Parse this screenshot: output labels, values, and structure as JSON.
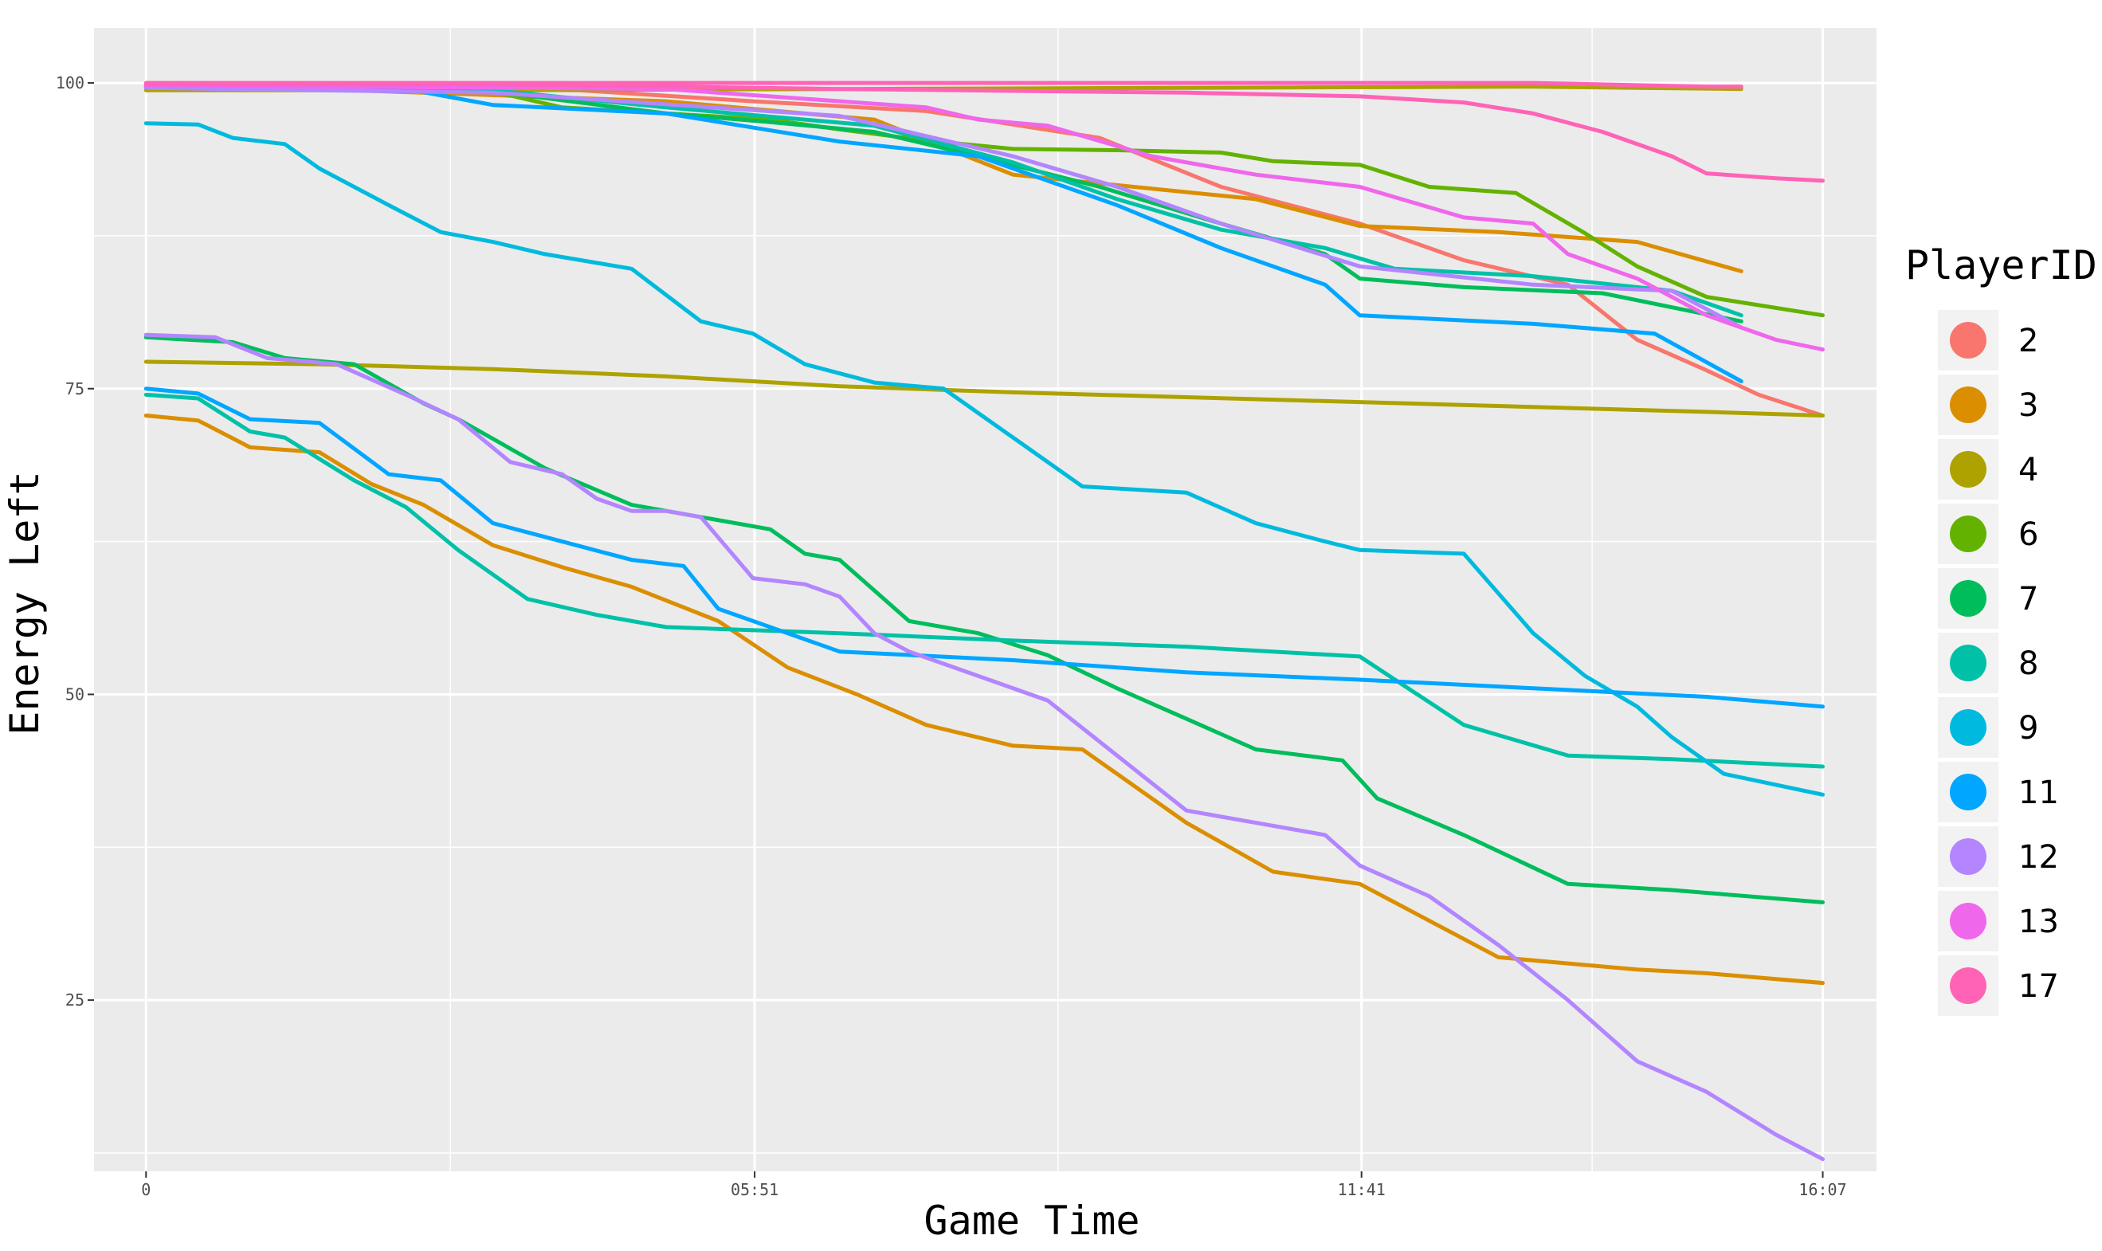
{
  "chart_data": {
    "type": "line",
    "xlabel": "Game Time",
    "ylabel": "Energy Left",
    "x_unit": "seconds",
    "xlim": [
      -30,
      998
    ],
    "ylim": [
      11,
      104.5
    ],
    "x_ticks": [
      {
        "value": 0,
        "label": "0"
      },
      {
        "value": 351,
        "label": "05:51"
      },
      {
        "value": 701,
        "label": "11:41"
      },
      {
        "value": 967,
        "label": "16:07"
      }
    ],
    "x_minor_ticks": [
      175.5,
      526,
      834
    ],
    "y_ticks": [
      {
        "value": 25,
        "label": "25"
      },
      {
        "value": 50,
        "label": "50"
      },
      {
        "value": 75,
        "label": "75"
      },
      {
        "value": 100,
        "label": "100"
      }
    ],
    "y_minor_ticks": [
      12.5,
      37.5,
      62.5,
      87.5
    ],
    "grid": true,
    "background": "#ebebeb",
    "legend": {
      "title": "PlayerID",
      "position": "right"
    },
    "series": [
      {
        "name": "2",
        "color": "#F8766D",
        "x": [
          0,
          100,
          250,
          350,
          450,
          550,
          620,
          700,
          760,
          820,
          860,
          900,
          930,
          967
        ],
        "y": [
          99.8,
          99.6,
          99.4,
          98.5,
          97.7,
          95.5,
          91.5,
          88.5,
          85.5,
          83.5,
          79,
          76.5,
          74.5,
          72.8
        ]
      },
      {
        "name": "3",
        "color": "#DB8E00",
        "x": [
          0,
          40,
          120,
          300,
          420,
          500,
          640,
          700,
          780,
          860,
          920
        ],
        "y": [
          99.6,
          99.5,
          99.4,
          98.5,
          97.0,
          92.5,
          90.5,
          88.3,
          87.8,
          87.0,
          84.6
        ]
      },
      {
        "name": "3",
        "color": "#DB8E00",
        "x": [
          0,
          30,
          60,
          100,
          130,
          160,
          200,
          240,
          280,
          330,
          370,
          410,
          450,
          500,
          540,
          600,
          650,
          700,
          740,
          780,
          820,
          860,
          900,
          967
        ],
        "y": [
          72.8,
          72.4,
          70.2,
          69.8,
          67.2,
          65.5,
          62.2,
          60.4,
          58.8,
          56.0,
          52.2,
          50.0,
          47.5,
          45.8,
          45.5,
          39.5,
          35.5,
          34.5,
          31.5,
          28.5,
          28.0,
          27.5,
          27.2,
          26.4
        ]
      },
      {
        "name": "4",
        "color": "#AEA200",
        "x": [
          0,
          100,
          200,
          300,
          400,
          500,
          600,
          700,
          800,
          900,
          967
        ],
        "y": [
          77.2,
          77.0,
          76.6,
          76.0,
          75.2,
          74.7,
          74.3,
          73.9,
          73.5,
          73.1,
          72.8
        ]
      },
      {
        "name": "4",
        "color": "#AEA200",
        "x": [
          0,
          200,
          400,
          600,
          800,
          920
        ],
        "y": [
          99.4,
          99.4,
          99.5,
          99.6,
          99.7,
          99.5
        ]
      },
      {
        "name": "6",
        "color": "#64B200",
        "x": [
          0,
          100,
          200,
          240,
          300,
          360,
          400,
          450,
          500,
          560,
          620,
          650,
          700,
          740,
          790,
          830,
          860,
          900,
          967
        ],
        "y": [
          99.6,
          99.5,
          99.3,
          98.0,
          97.5,
          97.0,
          96.2,
          95.3,
          94.6,
          94.5,
          94.3,
          93.6,
          93.3,
          91.5,
          91.0,
          87.7,
          85.0,
          82.5,
          81.0
        ]
      },
      {
        "name": "7",
        "color": "#00BD5C",
        "x": [
          0,
          50,
          80,
          120,
          160,
          180,
          230,
          280,
          320,
          360,
          380,
          400,
          440,
          480,
          520,
          560,
          600,
          640,
          690,
          710,
          760,
          820,
          880,
          967
        ],
        "y": [
          79.2,
          78.8,
          77.5,
          77.0,
          73.8,
          72.5,
          68.5,
          65.5,
          64.5,
          63.5,
          61.5,
          61.0,
          56.0,
          55.0,
          53.2,
          50.5,
          48.0,
          45.5,
          44.6,
          41.5,
          38.5,
          34.5,
          34.0,
          33.0
        ]
      },
      {
        "name": "7",
        "color": "#00BD5C",
        "x": [
          0,
          200,
          300,
          360,
          420,
          480,
          550,
          620,
          680,
          700,
          760,
          840,
          920
        ],
        "y": [
          99.6,
          99.3,
          97.5,
          96.8,
          96.0,
          94.0,
          91.5,
          88.5,
          86.0,
          84.0,
          83.3,
          82.8,
          80.5
        ]
      },
      {
        "name": "8",
        "color": "#00C1A7",
        "x": [
          0,
          30,
          60,
          80,
          120,
          150,
          180,
          220,
          260,
          300,
          400,
          500,
          600,
          700,
          760,
          820,
          880,
          967
        ],
        "y": [
          74.5,
          74.2,
          71.5,
          71.0,
          67.5,
          65.3,
          61.8,
          57.8,
          56.5,
          55.5,
          55.0,
          54.4,
          53.9,
          53.1,
          47.5,
          45.0,
          44.7,
          44.1
        ]
      },
      {
        "name": "8",
        "color": "#00C1A7",
        "x": [
          0,
          200,
          300,
          420,
          500,
          560,
          620,
          680,
          720,
          800,
          880,
          920
        ],
        "y": [
          99.7,
          99.4,
          98.0,
          96.5,
          93.5,
          90.5,
          88.0,
          86.5,
          84.8,
          84.2,
          83.0,
          81.0
        ]
      },
      {
        "name": "9",
        "color": "#00BADE",
        "x": [
          0,
          30,
          50,
          80,
          100,
          140,
          170,
          200,
          230,
          280,
          320,
          350,
          380,
          420,
          460,
          480,
          500,
          540,
          600,
          640,
          680,
          700,
          760,
          800,
          830,
          860,
          880,
          910,
          967
        ],
        "y": [
          96.7,
          96.6,
          95.5,
          95.0,
          93.0,
          90.0,
          87.8,
          87.0,
          86.0,
          84.8,
          80.5,
          79.5,
          77.0,
          75.5,
          75.0,
          73.0,
          71.0,
          67.0,
          66.5,
          64.0,
          62.5,
          61.8,
          61.5,
          55.0,
          51.5,
          49.0,
          46.5,
          43.5,
          41.8
        ]
      },
      {
        "name": "11",
        "color": "#00A6FF",
        "x": [
          0,
          30,
          60,
          100,
          140,
          170,
          200,
          240,
          280,
          310,
          330,
          400,
          500,
          600,
          700,
          800,
          900,
          967
        ],
        "y": [
          75.0,
          74.6,
          72.5,
          72.2,
          68.0,
          67.5,
          64.0,
          62.5,
          61.0,
          60.5,
          57.0,
          53.5,
          52.8,
          51.8,
          51.2,
          50.5,
          49.8,
          49.0
        ]
      },
      {
        "name": "11",
        "color": "#00A6FF",
        "x": [
          0,
          150,
          200,
          300,
          400,
          480,
          560,
          620,
          680,
          700,
          800,
          870,
          920
        ],
        "y": [
          99.8,
          99.5,
          98.2,
          97.5,
          95.2,
          94.0,
          90.0,
          86.5,
          83.5,
          81.0,
          80.3,
          79.5,
          75.6
        ]
      },
      {
        "name": "12",
        "color": "#B385FF",
        "x": [
          0,
          40,
          70,
          110,
          150,
          180,
          210,
          240,
          260,
          280,
          300,
          320,
          350,
          380,
          400,
          420,
          440,
          480,
          520,
          560,
          600,
          640,
          680,
          700,
          740,
          780,
          820,
          860,
          900,
          940,
          967
        ],
        "y": [
          79.4,
          79.2,
          77.5,
          77.0,
          74.5,
          72.5,
          69.0,
          68.0,
          66.0,
          65.0,
          65.0,
          64.5,
          59.5,
          59.0,
          58.0,
          55.0,
          53.5,
          51.5,
          49.5,
          45.0,
          40.5,
          39.5,
          38.5,
          36.0,
          33.5,
          29.5,
          25.0,
          20.0,
          17.5,
          14.0,
          12.0
        ]
      },
      {
        "name": "12",
        "color": "#B385FF",
        "x": [
          0,
          200,
          400,
          500,
          560,
          620,
          700,
          800,
          880,
          920
        ],
        "y": [
          99.6,
          99.2,
          97.3,
          94.0,
          91.5,
          88.5,
          85.0,
          83.5,
          83.0,
          80.0
        ]
      },
      {
        "name": "13",
        "color": "#EF67EB",
        "x": [
          0,
          300,
          450,
          480,
          520,
          580,
          640,
          700,
          760,
          800,
          820,
          860,
          900,
          940,
          967
        ],
        "y": [
          99.8,
          99.5,
          98.0,
          97.0,
          96.5,
          94.0,
          92.5,
          91.5,
          89.0,
          88.5,
          86.0,
          84.0,
          81.0,
          79.0,
          78.2
        ]
      },
      {
        "name": "17",
        "color": "#FF63B6",
        "x": [
          0,
          200,
          400,
          600,
          700,
          760,
          800,
          840,
          880,
          900,
          940,
          967
        ],
        "y": [
          99.9,
          99.9,
          99.5,
          99.2,
          98.9,
          98.4,
          97.5,
          96.0,
          94.0,
          92.6,
          92.2,
          92.0
        ]
      },
      {
        "name": "17",
        "color": "#FF63B6",
        "x": [
          0,
          400,
          800,
          900,
          920
        ],
        "y": [
          100.0,
          100.0,
          100.0,
          99.7,
          99.7
        ]
      }
    ],
    "legend_entries": [
      {
        "label": "2",
        "color": "#F8766D"
      },
      {
        "label": "3",
        "color": "#DB8E00"
      },
      {
        "label": "4",
        "color": "#AEA200"
      },
      {
        "label": "6",
        "color": "#64B200"
      },
      {
        "label": "7",
        "color": "#00BD5C"
      },
      {
        "label": "8",
        "color": "#00C1A7"
      },
      {
        "label": "9",
        "color": "#00BADE"
      },
      {
        "label": "11",
        "color": "#00A6FF"
      },
      {
        "label": "12",
        "color": "#B385FF"
      },
      {
        "label": "13",
        "color": "#EF67EB"
      },
      {
        "label": "17",
        "color": "#FF63B6"
      }
    ]
  }
}
